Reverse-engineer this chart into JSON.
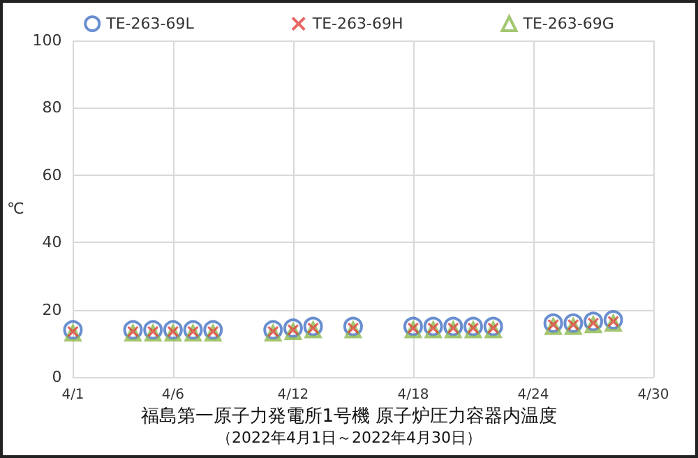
{
  "chart_data": {
    "type": "scatter",
    "title": "福島第一原子力発電所1号機 原子炉圧力容器内温度",
    "subtitle": "（2022年4月1日～2022年4月30日）",
    "ylabel": "℃",
    "x": [
      "--04-01",
      "--04-04",
      "--04-05",
      "--04-06",
      "--04-07",
      "--04-08",
      "--04-11",
      "--04-12",
      "--04-13",
      "--04-15",
      "--04-18",
      "--04-19",
      "--04-20",
      "--04-21",
      "--04-22",
      "--04-25",
      "--04-26",
      "--04-27",
      "--04-28"
    ],
    "series": [
      {
        "name": "TE-263-69L",
        "color": "#4472c4",
        "marker": "circle",
        "values": [
          14,
          14,
          14,
          14,
          14,
          14,
          14,
          14.5,
          15,
          15,
          15,
          15,
          15,
          15,
          15,
          16,
          16,
          16.5,
          17
        ]
      },
      {
        "name": "TE-263-69H",
        "color": "#e0403c",
        "marker": "cross",
        "values": [
          13.5,
          13.5,
          13.5,
          13.5,
          13.5,
          13.5,
          13.5,
          14,
          14.5,
          14.5,
          14.5,
          14.5,
          14.5,
          14.5,
          14.5,
          15.5,
          15.5,
          16,
          16.5
        ]
      },
      {
        "name": "TE-263-69G",
        "color": "#8cb84c",
        "marker": "triangle",
        "values": [
          13,
          13,
          13,
          13,
          13,
          13,
          13,
          13.5,
          14,
          14,
          14,
          14,
          14,
          14,
          14,
          15,
          15,
          15.5,
          16
        ]
      }
    ],
    "xlim": [
      "--04-01",
      "--04-30"
    ],
    "xticks": [
      {
        "value": "--04-01",
        "label": "4/1"
      },
      {
        "value": "--04-06",
        "label": "4/6"
      },
      {
        "value": "--04-12",
        "label": "4/12"
      },
      {
        "value": "--04-18",
        "label": "4/18"
      },
      {
        "value": "--04-24",
        "label": "4/24"
      },
      {
        "value": "--04-30",
        "label": "4/30"
      }
    ],
    "ylim": [
      0,
      100
    ],
    "yticks": [
      0,
      20,
      40,
      60,
      80,
      100
    ],
    "grid": true,
    "legend": "top"
  }
}
